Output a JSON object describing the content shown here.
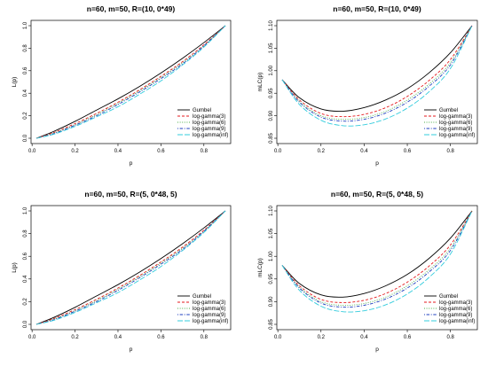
{
  "legend_series": [
    {
      "name": "Gumbel",
      "color": "#000000",
      "dash": "solid"
    },
    {
      "name": "log-gamma(3)",
      "color": "#e41a1c",
      "dash": "dashed"
    },
    {
      "name": "log-gamma(6)",
      "color": "#4daf4a",
      "dash": "dotted"
    },
    {
      "name": "log-gamma(9)",
      "color": "#1f3fbf",
      "dash": "dotdash"
    },
    {
      "name": "log-gamma(inf)",
      "color": "#33ccdd",
      "dash": "longdash"
    }
  ],
  "chart_data": [
    {
      "type": "line",
      "title": "n=60, m=50, R=(10, 0*49)",
      "xlabel": "p",
      "ylabel": "L(p)",
      "xlim": [
        0.02,
        0.9
      ],
      "ylim": [
        0.0,
        1.0
      ],
      "xticks": [
        "0.0",
        "0.2",
        "0.4",
        "0.6",
        "0.8"
      ],
      "yticks": [
        "0.0",
        "0.2",
        "0.4",
        "0.6",
        "0.8",
        "1.0"
      ],
      "grid": false,
      "legend_position": "bottom-right",
      "x": [
        0.02,
        0.1,
        0.2,
        0.3,
        0.4,
        0.5,
        0.6,
        0.7,
        0.8,
        0.9
      ],
      "series": [
        {
          "name": "Gumbel",
          "values": [
            0.0,
            0.06,
            0.15,
            0.25,
            0.35,
            0.46,
            0.58,
            0.71,
            0.85,
            1.0
          ]
        },
        {
          "name": "log-gamma(3)",
          "values": [
            0.0,
            0.05,
            0.13,
            0.22,
            0.32,
            0.43,
            0.55,
            0.68,
            0.83,
            1.0
          ]
        },
        {
          "name": "log-gamma(6)",
          "values": [
            0.0,
            0.045,
            0.12,
            0.21,
            0.31,
            0.42,
            0.54,
            0.67,
            0.82,
            1.0
          ]
        },
        {
          "name": "log-gamma(9)",
          "values": [
            0.0,
            0.04,
            0.115,
            0.2,
            0.3,
            0.41,
            0.53,
            0.66,
            0.82,
            1.0
          ]
        },
        {
          "name": "log-gamma(inf)",
          "values": [
            0.0,
            0.035,
            0.105,
            0.19,
            0.28,
            0.39,
            0.51,
            0.65,
            0.81,
            1.0
          ]
        }
      ]
    },
    {
      "type": "line",
      "title": "n=60, m=50, R=(10, 0*49)",
      "xlabel": "p",
      "ylabel": "mLC(p)",
      "xlim": [
        0.02,
        0.9
      ],
      "ylim": [
        0.85,
        1.1
      ],
      "xticks": [
        "0.0",
        "0.2",
        "0.4",
        "0.6",
        "0.8"
      ],
      "yticks": [
        "0.85",
        "0.90",
        "0.95",
        "1.00",
        "1.05",
        "1.10"
      ],
      "grid": false,
      "legend_position": "bottom-right",
      "x": [
        0.02,
        0.1,
        0.2,
        0.3,
        0.4,
        0.5,
        0.6,
        0.7,
        0.8,
        0.9
      ],
      "series": [
        {
          "name": "Gumbel",
          "values": [
            0.98,
            0.94,
            0.915,
            0.91,
            0.918,
            0.935,
            0.96,
            0.995,
            1.04,
            1.1
          ]
        },
        {
          "name": "log-gamma(3)",
          "values": [
            0.98,
            0.935,
            0.905,
            0.898,
            0.903,
            0.918,
            0.943,
            0.978,
            1.025,
            1.1
          ]
        },
        {
          "name": "log-gamma(6)",
          "values": [
            0.98,
            0.932,
            0.9,
            0.892,
            0.896,
            0.91,
            0.935,
            0.97,
            1.018,
            1.1
          ]
        },
        {
          "name": "log-gamma(9)",
          "values": [
            0.98,
            0.93,
            0.897,
            0.888,
            0.892,
            0.906,
            0.93,
            0.965,
            1.013,
            1.1
          ]
        },
        {
          "name": "log-gamma(inf)",
          "values": [
            0.98,
            0.925,
            0.89,
            0.878,
            0.88,
            0.893,
            0.917,
            0.953,
            1.005,
            1.1
          ]
        }
      ]
    },
    {
      "type": "line",
      "title": "n=60, m=50, R=(5, 0*48, 5)",
      "xlabel": "p",
      "ylabel": "L(p)",
      "xlim": [
        0.02,
        0.9
      ],
      "ylim": [
        0.0,
        1.0
      ],
      "xticks": [
        "0.0",
        "0.2",
        "0.4",
        "0.6",
        "0.8"
      ],
      "yticks": [
        "0.0",
        "0.2",
        "0.4",
        "0.6",
        "0.8",
        "1.0"
      ],
      "grid": false,
      "legend_position": "bottom-right",
      "x": [
        0.02,
        0.1,
        0.2,
        0.3,
        0.4,
        0.5,
        0.6,
        0.7,
        0.8,
        0.9
      ],
      "series": [
        {
          "name": "Gumbel",
          "values": [
            0.0,
            0.06,
            0.15,
            0.25,
            0.35,
            0.46,
            0.58,
            0.71,
            0.85,
            1.0
          ]
        },
        {
          "name": "log-gamma(3)",
          "values": [
            0.0,
            0.05,
            0.13,
            0.22,
            0.32,
            0.43,
            0.55,
            0.68,
            0.83,
            1.0
          ]
        },
        {
          "name": "log-gamma(6)",
          "values": [
            0.0,
            0.045,
            0.12,
            0.21,
            0.31,
            0.42,
            0.54,
            0.67,
            0.82,
            1.0
          ]
        },
        {
          "name": "log-gamma(9)",
          "values": [
            0.0,
            0.04,
            0.115,
            0.2,
            0.3,
            0.41,
            0.53,
            0.66,
            0.82,
            1.0
          ]
        },
        {
          "name": "log-gamma(inf)",
          "values": [
            0.0,
            0.035,
            0.105,
            0.19,
            0.28,
            0.39,
            0.51,
            0.65,
            0.81,
            1.0
          ]
        }
      ]
    },
    {
      "type": "line",
      "title": "n=60, m=50, R=(5, 0*48, 5)",
      "xlabel": "p",
      "ylabel": "mLC(p)",
      "xlim": [
        0.02,
        0.9
      ],
      "ylim": [
        0.85,
        1.1
      ],
      "xticks": [
        "0.0",
        "0.2",
        "0.4",
        "0.6",
        "0.8"
      ],
      "yticks": [
        "0.85",
        "0.90",
        "0.95",
        "1.00",
        "1.05",
        "1.10"
      ],
      "grid": false,
      "legend_position": "bottom-right",
      "x": [
        0.02,
        0.1,
        0.2,
        0.3,
        0.4,
        0.5,
        0.6,
        0.7,
        0.8,
        0.9
      ],
      "series": [
        {
          "name": "Gumbel",
          "values": [
            0.98,
            0.94,
            0.915,
            0.91,
            0.918,
            0.935,
            0.96,
            0.995,
            1.04,
            1.1
          ]
        },
        {
          "name": "log-gamma(3)",
          "values": [
            0.98,
            0.935,
            0.905,
            0.898,
            0.903,
            0.918,
            0.943,
            0.978,
            1.025,
            1.1
          ]
        },
        {
          "name": "log-gamma(6)",
          "values": [
            0.98,
            0.932,
            0.9,
            0.892,
            0.896,
            0.91,
            0.935,
            0.97,
            1.018,
            1.1
          ]
        },
        {
          "name": "log-gamma(9)",
          "values": [
            0.98,
            0.93,
            0.897,
            0.888,
            0.892,
            0.906,
            0.93,
            0.965,
            1.013,
            1.1
          ]
        },
        {
          "name": "log-gamma(inf)",
          "values": [
            0.98,
            0.925,
            0.89,
            0.878,
            0.88,
            0.893,
            0.917,
            0.953,
            1.005,
            1.1
          ]
        }
      ]
    }
  ]
}
